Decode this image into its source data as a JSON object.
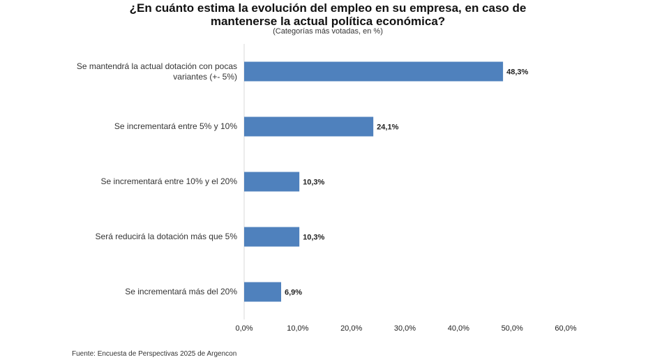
{
  "chart_data": {
    "type": "hbar",
    "title": "¿En cuánto estima la evolución del empleo en su empresa, en caso de mantenerse la actual política económica?",
    "subtitle": "(Categorías más votadas, en %)",
    "source": "Fuente: Encuesta de Perspectivas 2025 de Argencon",
    "categories": [
      "Se mantendrá la actual dotación con pocas variantes (+- 5%)",
      "Se incrementará entre 5% y 10%",
      "Se incrementará entre 10% y el 20%",
      "Será reducirá la dotación más que 5%",
      "Se incrementará más del 20%"
    ],
    "values": [
      48.3,
      24.1,
      10.3,
      10.3,
      6.9
    ],
    "value_labels": [
      "48,3%",
      "24,1%",
      "10,3%",
      "10,3%",
      "6,9%"
    ],
    "color": "#4f81bd",
    "xlim": [
      0,
      60
    ],
    "xticks": [
      {
        "value": 0,
        "label": "0,0%"
      },
      {
        "value": 10,
        "label": "10,0%"
      },
      {
        "value": 20,
        "label": "20,0%"
      },
      {
        "value": 30,
        "label": "30,0%"
      },
      {
        "value": 40,
        "label": "40,0%"
      },
      {
        "value": 50,
        "label": "50,0%"
      },
      {
        "value": 60,
        "label": "60,0%"
      }
    ]
  }
}
